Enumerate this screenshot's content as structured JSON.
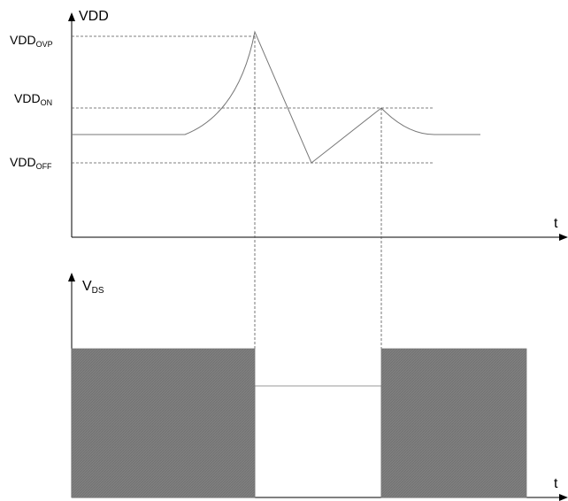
{
  "diagram": {
    "top_plot": {
      "y_axis_label": "VDD",
      "x_axis_label": "t",
      "levels": {
        "ovp": {
          "main": "VDD",
          "sub": "OVP"
        },
        "on": {
          "main": "VDD",
          "sub": "ON"
        },
        "off": {
          "main": "VDD",
          "sub": "OFF"
        }
      }
    },
    "bottom_plot": {
      "y_axis_label": {
        "main": "V",
        "sub": "DS"
      },
      "x_axis_label": "t"
    },
    "colors": {
      "line": "#000000",
      "dashed": "#555555",
      "waveform": "#777777",
      "switching_fill": "#7a7a7a"
    }
  }
}
